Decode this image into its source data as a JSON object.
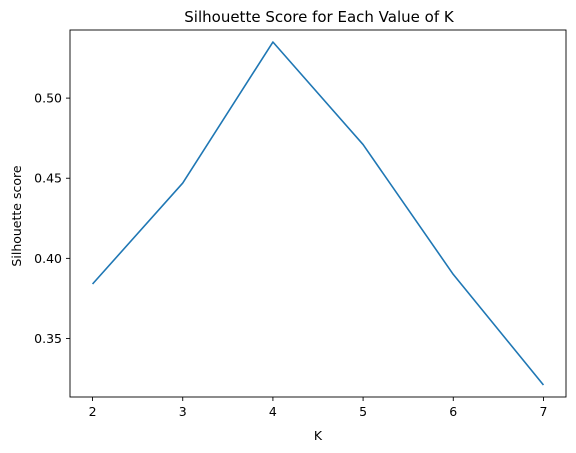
{
  "chart_data": {
    "type": "line",
    "title": "Silhouette Score for Each Value of K",
    "xlabel": "K",
    "ylabel": "Silhouette score",
    "x": [
      2,
      3,
      4,
      5,
      6,
      7
    ],
    "series": [
      {
        "values": [
          0.384,
          0.447,
          0.535,
          0.471,
          0.39,
          0.321
        ],
        "color": "#1f77b4"
      }
    ],
    "xlim": [
      1.75,
      7.25
    ],
    "ylim": [
      0.3135,
      0.5425
    ],
    "xticks": [
      2,
      3,
      4,
      5,
      6,
      7
    ],
    "yticks": [
      0.35,
      0.4,
      0.45,
      0.5
    ],
    "ytick_labels": [
      "0.35",
      "0.40",
      "0.45",
      "0.50"
    ],
    "grid": false,
    "legend": false
  }
}
